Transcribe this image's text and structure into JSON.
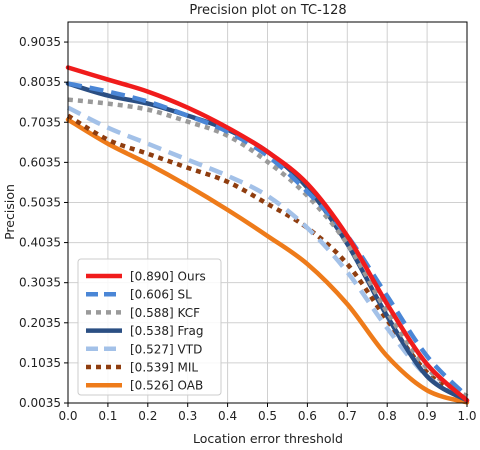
{
  "chart_data": {
    "type": "line",
    "title": "Precision plot on TC-128",
    "xlabel": "Location error threshold",
    "ylabel": "Precision",
    "xlim": [
      0,
      1
    ],
    "ylim": [
      0.0035,
      0.9535
    ],
    "xticks": [
      "0.0",
      "0.1",
      "0.2",
      "0.3",
      "0.4",
      "0.5",
      "0.6",
      "0.7",
      "0.8",
      "0.9",
      "1.0"
    ],
    "yticks": [
      "0.0035",
      "0.1035",
      "0.2035",
      "0.3035",
      "0.4035",
      "0.5035",
      "0.6035",
      "0.7035",
      "0.8035",
      "0.9035"
    ],
    "grid": true,
    "legend_position": "lower-left",
    "x": [
      0,
      0.1,
      0.2,
      0.3,
      0.4,
      0.5,
      0.6,
      0.7,
      0.8,
      0.9,
      1.0
    ],
    "series": [
      {
        "name": "[0.890] Ours",
        "color": "#f01c1c",
        "dash": "solid",
        "values": [
          0.84,
          0.81,
          0.78,
          0.74,
          0.69,
          0.63,
          0.55,
          0.42,
          0.25,
          0.1,
          0.01
        ]
      },
      {
        "name": "[0.606] SL",
        "color": "#4a86d6",
        "dash": "dashed",
        "values": [
          0.8,
          0.78,
          0.755,
          0.72,
          0.68,
          0.62,
          0.53,
          0.42,
          0.27,
          0.12,
          0.02
        ]
      },
      {
        "name": "[0.588] KCF",
        "color": "#9a9a9a",
        "dash": "dotted",
        "values": [
          0.76,
          0.75,
          0.735,
          0.705,
          0.67,
          0.605,
          0.52,
          0.4,
          0.23,
          0.09,
          0.02
        ]
      },
      {
        "name": "[0.538] Frag",
        "color": "#2b4f83",
        "dash": "solid",
        "values": [
          0.8,
          0.77,
          0.75,
          0.72,
          0.685,
          0.63,
          0.54,
          0.4,
          0.22,
          0.07,
          0.01
        ]
      },
      {
        "name": "[0.527] VTD",
        "color": "#a3c1e8",
        "dash": "dashed",
        "values": [
          0.74,
          0.69,
          0.65,
          0.61,
          0.57,
          0.52,
          0.44,
          0.33,
          0.19,
          0.07,
          0.01
        ]
      },
      {
        "name": "[0.539] MIL",
        "color": "#8f3d0f",
        "dash": "dotted",
        "values": [
          0.72,
          0.66,
          0.625,
          0.59,
          0.555,
          0.5,
          0.44,
          0.35,
          0.21,
          0.08,
          0.01
        ]
      },
      {
        "name": "[0.526] OAB",
        "color": "#ee7b1a",
        "dash": "solid",
        "values": [
          0.71,
          0.65,
          0.6,
          0.545,
          0.485,
          0.42,
          0.35,
          0.25,
          0.12,
          0.035,
          0.005
        ]
      }
    ]
  }
}
